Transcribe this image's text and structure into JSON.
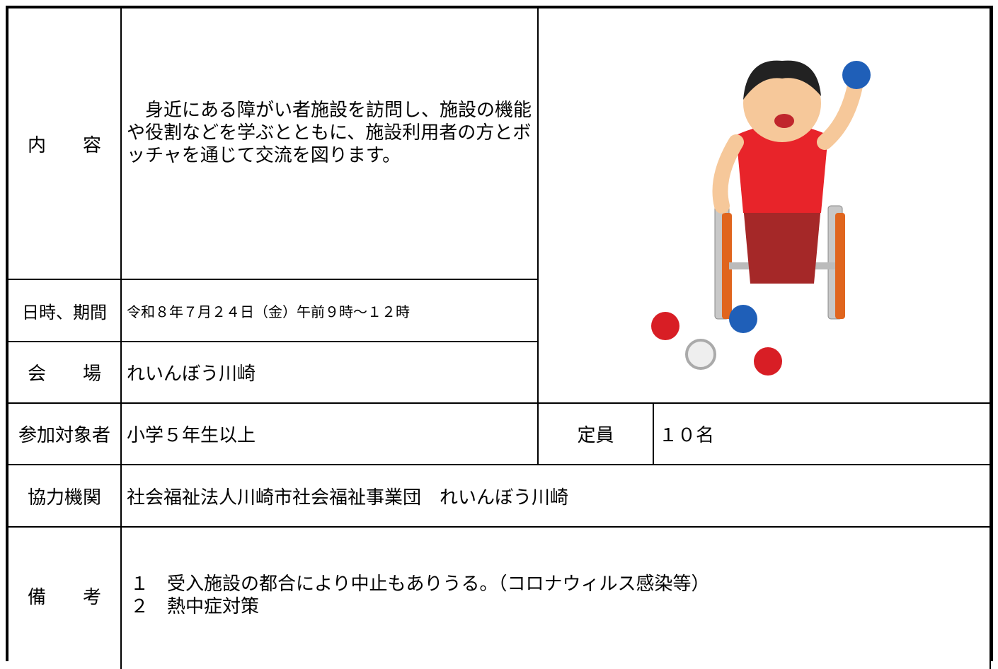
{
  "content": {
    "label": "内　　容",
    "text": "　身近にある障がい者施設を訪問し、施設の機能や役割などを学ぶとともに、施設利用者の方とボッチャを通じて交流を図ります。"
  },
  "datetime": {
    "label": "日時、期間",
    "text": "令和８年７月２４日（金）午前９時～１２時"
  },
  "venue": {
    "label": "会　　場",
    "text": "れいんぼう川崎"
  },
  "target": {
    "label": "参加対象者",
    "text": "小学５年生以上"
  },
  "capacity": {
    "label": "定員",
    "text": "１０名"
  },
  "partner": {
    "label": "協力機関",
    "text": "社会福祉法人川崎市社会福祉事業団　れいんぼう川崎"
  },
  "remarks": {
    "label": "備　　考",
    "items": [
      "１　受入施設の都合により中止もありうる。（コロナウィルス感染等）",
      "２　熱中症対策"
    ]
  }
}
